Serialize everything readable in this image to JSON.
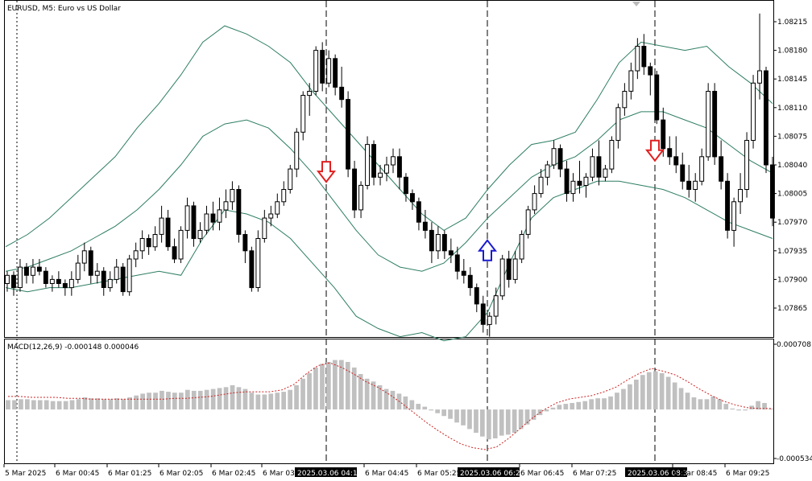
{
  "header": {
    "symbol_title": "EURUSD, M5:  Euro vs US Dollar",
    "macd_title": "MACD(12,26,9) -0.000148 0.000046"
  },
  "chart_data": {
    "type": "candlestick",
    "symbol": "EURUSD",
    "timeframe": "M5",
    "price_axis": {
      "ticks": [
        "1.08215",
        "1.08180",
        "1.08145",
        "1.08110",
        "1.08075",
        "1.08040",
        "1.08005",
        "1.07970",
        "1.07935",
        "1.07900",
        "1.07865"
      ],
      "range": [
        1.0782,
        1.0823
      ]
    },
    "macd_axis": {
      "ticks": [
        "0.000708",
        "-0.000534"
      ],
      "range": [
        -0.000534,
        0.000708
      ]
    },
    "time_axis": {
      "labels": [
        "5 Mar 2025",
        "6 Mar 00:45",
        "6 Mar 01:25",
        "6 Mar 02:05",
        "6 Mar 02:45",
        "6 Mar 03:25",
        "2025.03.06 04:15",
        "6 Mar 04:45",
        "6 Mar 05:25",
        "2025.03.06 06:20",
        "6 Mar 06:45",
        "6 Mar 07:25",
        "2025.03.06 08:30",
        "6 Mar 08:45",
        "6 Mar 09:25"
      ],
      "highlighted": [
        "2025.03.06 04:15",
        "2025.03.06 06:20",
        "2025.03.06 08:30"
      ]
    },
    "signals": [
      {
        "time": "2025.03.06 04:15",
        "direction": "sell",
        "price": 1.08032
      },
      {
        "time": "2025.03.06 06:20",
        "direction": "buy",
        "price": 1.07935
      },
      {
        "time": "2025.03.06 08:30",
        "direction": "sell",
        "price": 1.08058
      }
    ],
    "candles": [
      [
        1.07895,
        1.0791,
        1.07885,
        1.07905
      ],
      [
        1.07905,
        1.0791,
        1.0788,
        1.0789
      ],
      [
        1.0789,
        1.07925,
        1.07885,
        1.07915
      ],
      [
        1.07915,
        1.0792,
        1.07895,
        1.07905
      ],
      [
        1.07905,
        1.07925,
        1.07895,
        1.07915
      ],
      [
        1.07915,
        1.07925,
        1.07905,
        1.0791
      ],
      [
        1.0791,
        1.07915,
        1.0789,
        1.07895
      ],
      [
        1.07895,
        1.07905,
        1.07885,
        1.079
      ],
      [
        1.079,
        1.0791,
        1.0789,
        1.07895
      ],
      [
        1.07895,
        1.079,
        1.0788,
        1.0789
      ],
      [
        1.0789,
        1.0791,
        1.0788,
        1.079
      ],
      [
        1.079,
        1.0793,
        1.07895,
        1.0792
      ],
      [
        1.0792,
        1.07945,
        1.0791,
        1.07935
      ],
      [
        1.07935,
        1.0794,
        1.07895,
        1.07905
      ],
      [
        1.07905,
        1.0792,
        1.07895,
        1.0791
      ],
      [
        1.0791,
        1.07915,
        1.0788,
        1.0789
      ],
      [
        1.0789,
        1.0791,
        1.07885,
        1.079
      ],
      [
        1.079,
        1.07925,
        1.07895,
        1.07915
      ],
      [
        1.07915,
        1.0792,
        1.0788,
        1.07885
      ],
      [
        1.07885,
        1.0793,
        1.0788,
        1.07925
      ],
      [
        1.07925,
        1.07945,
        1.07915,
        1.07935
      ],
      [
        1.07935,
        1.0796,
        1.07925,
        1.0795
      ],
      [
        1.0795,
        1.07955,
        1.0793,
        1.0794
      ],
      [
        1.0794,
        1.07965,
        1.07935,
        1.07955
      ],
      [
        1.07955,
        1.0799,
        1.07945,
        1.07975
      ],
      [
        1.07975,
        1.07985,
        1.07935,
        1.0794
      ],
      [
        1.0794,
        1.0795,
        1.0792,
        1.07925
      ],
      [
        1.07925,
        1.07965,
        1.0792,
        1.0796
      ],
      [
        1.0796,
        1.08,
        1.0795,
        1.0799
      ],
      [
        1.0799,
        1.07995,
        1.0794,
        1.0795
      ],
      [
        1.0795,
        1.0797,
        1.07945,
        1.0796
      ],
      [
        1.0796,
        1.0799,
        1.07955,
        1.0798
      ],
      [
        1.0798,
        1.07995,
        1.0796,
        1.0797
      ],
      [
        1.0797,
        1.08,
        1.0796,
        1.07985
      ],
      [
        1.07985,
        1.0801,
        1.07975,
        1.07995
      ],
      [
        1.07995,
        1.0802,
        1.07985,
        1.0801
      ],
      [
        1.0801,
        1.08015,
        1.07945,
        1.07955
      ],
      [
        1.07955,
        1.0796,
        1.0792,
        1.07935
      ],
      [
        1.07935,
        1.0794,
        1.07885,
        1.0789
      ],
      [
        1.0789,
        1.0796,
        1.07885,
        1.0795
      ],
      [
        1.0795,
        1.07985,
        1.07945,
        1.07975
      ],
      [
        1.07975,
        1.0799,
        1.07965,
        1.0798
      ],
      [
        1.0798,
        1.08005,
        1.07975,
        1.07995
      ],
      [
        1.07995,
        1.0802,
        1.0799,
        1.0801
      ],
      [
        1.0801,
        1.0804,
        1.08005,
        1.08035
      ],
      [
        1.08035,
        1.08085,
        1.08025,
        1.0808
      ],
      [
        1.0808,
        1.0813,
        1.0807,
        1.08125
      ],
      [
        1.08125,
        1.0814,
        1.081,
        1.0813
      ],
      [
        1.0813,
        1.08185,
        1.08125,
        1.0818
      ],
      [
        1.0818,
        1.0819,
        1.0813,
        1.0814
      ],
      [
        1.0814,
        1.0818,
        1.08135,
        1.0817
      ],
      [
        1.0817,
        1.08175,
        1.08125,
        1.08135
      ],
      [
        1.08135,
        1.0816,
        1.0811,
        1.0812
      ],
      [
        1.0812,
        1.0813,
        1.08025,
        1.08035
      ],
      [
        1.08035,
        1.08045,
        1.07975,
        1.07985
      ],
      [
        1.07985,
        1.0802,
        1.07975,
        1.08015
      ],
      [
        1.08015,
        1.08075,
        1.0801,
        1.08065
      ],
      [
        1.08065,
        1.0807,
        1.08015,
        1.08025
      ],
      [
        1.08025,
        1.0804,
        1.08015,
        1.0803
      ],
      [
        1.0803,
        1.0805,
        1.0802,
        1.0804
      ],
      [
        1.0804,
        1.0806,
        1.0803,
        1.0805
      ],
      [
        1.0805,
        1.0806,
        1.0801,
        1.08025
      ],
      [
        1.08025,
        1.0803,
        1.07995,
        1.08005
      ],
      [
        1.08005,
        1.0801,
        1.07985,
        1.07995
      ],
      [
        1.07995,
        1.08,
        1.0796,
        1.0797
      ],
      [
        1.0797,
        1.07985,
        1.0795,
        1.0796
      ],
      [
        1.0796,
        1.0797,
        1.0792,
        1.07935
      ],
      [
        1.07935,
        1.07965,
        1.07925,
        1.07955
      ],
      [
        1.07955,
        1.0796,
        1.07925,
        1.07935
      ],
      [
        1.07935,
        1.0795,
        1.0792,
        1.0793
      ],
      [
        1.0793,
        1.0794,
        1.079,
        1.0791
      ],
      [
        1.0791,
        1.07925,
        1.07895,
        1.07905
      ],
      [
        1.07905,
        1.07915,
        1.0788,
        1.0789
      ],
      [
        1.0789,
        1.07895,
        1.0786,
        1.0787
      ],
      [
        1.0787,
        1.0788,
        1.07835,
        1.07845
      ],
      [
        1.07845,
        1.0786,
        1.0783,
        1.07855
      ],
      [
        1.07855,
        1.0789,
        1.07845,
        1.0788
      ],
      [
        1.0788,
        1.0793,
        1.07875,
        1.07925
      ],
      [
        1.07925,
        1.07935,
        1.0789,
        1.079
      ],
      [
        1.079,
        1.07935,
        1.07895,
        1.07925
      ],
      [
        1.07925,
        1.0796,
        1.0792,
        1.07955
      ],
      [
        1.07955,
        1.0799,
        1.0795,
        1.07985
      ],
      [
        1.07985,
        1.08015,
        1.0798,
        1.08005
      ],
      [
        1.08005,
        1.08035,
        1.08,
        1.08025
      ],
      [
        1.08025,
        1.08045,
        1.08015,
        1.0804
      ],
      [
        1.0804,
        1.0807,
        1.08035,
        1.0806
      ],
      [
        1.0806,
        1.08065,
        1.08025,
        1.08035
      ],
      [
        1.08035,
        1.08045,
        1.07995,
        1.08005
      ],
      [
        1.08005,
        1.0803,
        1.07995,
        1.0802
      ],
      [
        1.0802,
        1.08045,
        1.08005,
        1.08015
      ],
      [
        1.08015,
        1.0803,
        1.08,
        1.08025
      ],
      [
        1.08025,
        1.0806,
        1.0802,
        1.0805
      ],
      [
        1.0805,
        1.0807,
        1.08015,
        1.08025
      ],
      [
        1.08025,
        1.0804,
        1.0802,
        1.08035
      ],
      [
        1.08035,
        1.08075,
        1.0803,
        1.0807
      ],
      [
        1.0807,
        1.08115,
        1.0806,
        1.0811
      ],
      [
        1.0811,
        1.0814,
        1.081,
        1.0813
      ],
      [
        1.0813,
        1.08165,
        1.0812,
        1.08155
      ],
      [
        1.08155,
        1.08195,
        1.08145,
        1.08185
      ],
      [
        1.08185,
        1.082,
        1.0815,
        1.0816
      ],
      [
        1.0816,
        1.08165,
        1.08125,
        1.0815
      ],
      [
        1.0815,
        1.08155,
        1.0809,
        1.08095
      ],
      [
        1.08095,
        1.0811,
        1.0805,
        1.0806
      ],
      [
        1.0806,
        1.08075,
        1.0804,
        1.0805
      ],
      [
        1.0805,
        1.08075,
        1.0803,
        1.0804
      ],
      [
        1.0804,
        1.08055,
        1.0801,
        1.0802
      ],
      [
        1.0802,
        1.0804,
        1.08,
        1.0801
      ],
      [
        1.0801,
        1.0803,
        1.07995,
        1.0802
      ],
      [
        1.0802,
        1.0806,
        1.08015,
        1.0805
      ],
      [
        1.0805,
        1.0814,
        1.08045,
        1.0813
      ],
      [
        1.0813,
        1.0814,
        1.0804,
        1.0805
      ],
      [
        1.0805,
        1.0807,
        1.0801,
        1.0802
      ],
      [
        1.0802,
        1.0803,
        1.0795,
        1.0796
      ],
      [
        1.0796,
        1.08,
        1.0794,
        1.07995
      ],
      [
        1.07995,
        1.0803,
        1.0798,
        1.0801
      ],
      [
        1.0801,
        1.0808,
        1.08,
        1.0807
      ],
      [
        1.0807,
        1.0815,
        1.0806,
        1.0814
      ],
      [
        1.0814,
        1.08225,
        1.0812,
        1.08155
      ],
      [
        1.08155,
        1.0816,
        1.0803,
        1.0804
      ],
      [
        1.0804,
        1.0805,
        1.07965,
        1.07975
      ]
    ],
    "bollinger_bands": {
      "color": "#2e7d64",
      "upper": [
        1.0794,
        1.07955,
        1.07975,
        1.08,
        1.08025,
        1.0805,
        1.08085,
        1.08115,
        1.0815,
        1.0819,
        1.0821,
        1.082,
        1.08185,
        1.08165,
        1.0813,
        1.081,
        1.0807,
        1.0804,
        1.0801,
        1.0798,
        1.0796,
        1.07975,
        1.0801,
        1.0804,
        1.08065,
        1.0807,
        1.0808,
        1.0812,
        1.08165,
        1.0819,
        1.08185,
        1.0818,
        1.08185,
        1.0816,
        1.0814,
        1.08115
      ],
      "middle": [
        1.0791,
        1.07915,
        1.07925,
        1.07935,
        1.0795,
        1.07965,
        1.07985,
        1.0801,
        1.0804,
        1.08075,
        1.0809,
        1.08095,
        1.08085,
        1.0806,
        1.0803,
        1.07995,
        1.0796,
        1.0793,
        1.07915,
        1.0791,
        1.0792,
        1.07945,
        1.07975,
        1.08,
        1.08025,
        1.0804,
        1.0805,
        1.0807,
        1.08095,
        1.08105,
        1.08105,
        1.08095,
        1.08085,
        1.08065,
        1.08045,
        1.0803
      ],
      "lower": [
        1.0789,
        1.07885,
        1.0789,
        1.0789,
        1.07895,
        1.079,
        1.07905,
        1.0791,
        1.07905,
        1.0795,
        1.07985,
        1.0798,
        1.0797,
        1.0795,
        1.0792,
        1.0789,
        1.07855,
        1.0784,
        1.0783,
        1.07835,
        1.07825,
        1.0783,
        1.0786,
        1.0792,
        1.07975,
        1.08,
        1.0801,
        1.0802,
        1.0802,
        1.08015,
        1.0801,
        1.08,
        1.07985,
        1.0797,
        1.0796,
        1.0795
      ]
    },
    "macd": {
      "histogram": [
        0.0001,
        0.0001,
        0.00011,
        0.00011,
        0.0001,
        0.0001,
        0.0001,
        9e-05,
        9e-05,
        9e-05,
        0.0001,
        0.00011,
        0.00013,
        0.00012,
        0.00012,
        0.00011,
        0.00011,
        0.00012,
        0.00011,
        0.00013,
        0.00015,
        0.00017,
        0.00018,
        0.00018,
        0.0002,
        0.00019,
        0.00018,
        0.00018,
        0.00021,
        0.0002,
        0.0002,
        0.00021,
        0.00022,
        0.00023,
        0.00024,
        0.00026,
        0.00024,
        0.00022,
        0.00018,
        0.00016,
        0.00016,
        0.00017,
        0.00018,
        0.00019,
        0.00021,
        0.00026,
        0.00033,
        0.00039,
        0.00045,
        0.00049,
        0.00051,
        0.00053,
        0.00053,
        0.00051,
        0.00045,
        0.00038,
        0.00033,
        0.0003,
        0.00026,
        0.00022,
        0.0002,
        0.00017,
        0.00014,
        0.0001,
        6e-05,
        3e-05,
        -1e-05,
        -4e-05,
        -7e-05,
        -0.0001,
        -0.00014,
        -0.00017,
        -0.00021,
        -0.00025,
        -0.00029,
        -0.00032,
        -0.00031,
        -0.00028,
        -0.00027,
        -0.00025,
        -0.00021,
        -0.00016,
        -0.00011,
        -6e-05,
        -2e-05,
        2e-05,
        5e-05,
        6e-05,
        7e-05,
        8e-05,
        9e-05,
        0.00011,
        0.00012,
        0.00012,
        0.00014,
        0.00018,
        0.00022,
        0.00027,
        0.00032,
        0.00037,
        0.0004,
        0.00041,
        0.00039,
        0.00035,
        0.00029,
        0.00023,
        0.00018,
        0.00013,
        0.00011,
        0.00011,
        0.00014,
        0.00011,
        6e-05,
        1e-05,
        -1e-05,
        -1e-05,
        4e-05,
        9e-05,
        7e-05,
        1e-05
      ],
      "signal": [
        0.00014,
        0.00014,
        0.00013,
        0.00013,
        0.00013,
        0.00012,
        0.00012,
        0.00011,
        0.00011,
        0.00011,
        0.00011,
        0.00011,
        0.00011,
        0.00011,
        0.00012,
        0.00012,
        0.00013,
        0.00014,
        0.00016,
        0.00018,
        0.00019,
        0.00019,
        0.00019,
        0.00021,
        0.00027,
        0.00038,
        0.00047,
        0.0005,
        0.00045,
        0.00038,
        0.0003,
        0.00024,
        0.00016,
        7e-05,
        -3e-05,
        -0.00013,
        -0.00022,
        -0.0003,
        -0.00037,
        -0.00041,
        -0.00043,
        -0.0004,
        -0.00031,
        -0.0002,
        -9e-05,
        0.0,
        7e-05,
        0.00011,
        0.00013,
        0.00015,
        0.00019,
        0.00024,
        0.00032,
        0.00039,
        0.00044,
        0.00041,
        0.00037,
        0.0003,
        0.00022,
        0.00015,
        9e-05,
        5e-05,
        2e-05,
        1e-05,
        1e-05
      ]
    }
  }
}
